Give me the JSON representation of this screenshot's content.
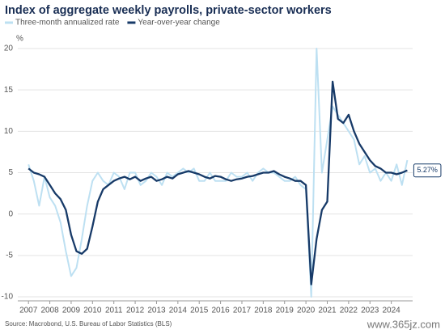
{
  "chart_data": {
    "type": "line",
    "title": "Index of aggregate weekly payrolls, private-sector workers",
    "y_label": "%",
    "source": "Source: Macrobond, U.S. Bureau of Labor Statistics (BLS)",
    "watermark": "www.365jz.com",
    "x": [
      2007,
      2007.25,
      2007.5,
      2007.75,
      2008,
      2008.25,
      2008.5,
      2008.75,
      2009,
      2009.25,
      2009.5,
      2009.75,
      2010,
      2010.25,
      2010.5,
      2010.75,
      2011,
      2011.25,
      2011.5,
      2011.75,
      2012,
      2012.25,
      2012.5,
      2012.75,
      2013,
      2013.25,
      2013.5,
      2013.75,
      2014,
      2014.25,
      2014.5,
      2014.75,
      2015,
      2015.25,
      2015.5,
      2015.75,
      2016,
      2016.25,
      2016.5,
      2016.75,
      2017,
      2017.25,
      2017.5,
      2017.75,
      2018,
      2018.25,
      2018.5,
      2018.75,
      2019,
      2019.25,
      2019.5,
      2019.75,
      2020,
      2020.25,
      2020.5,
      2020.75,
      2021,
      2021.25,
      2021.5,
      2021.75,
      2022,
      2022.25,
      2022.5,
      2022.75,
      2023,
      2023.25,
      2023.5,
      2023.75,
      2024,
      2024.25,
      2024.5,
      2024.75
    ],
    "series": [
      {
        "name": "Three-month annualized rate",
        "color": "#bde0f2",
        "values": [
          6.0,
          4.0,
          1.0,
          4.5,
          2.0,
          1.0,
          -1.0,
          -4.5,
          -7.5,
          -6.5,
          -3.0,
          1.0,
          4.0,
          5.0,
          4.0,
          3.5,
          5.0,
          4.5,
          3.0,
          5.0,
          5.0,
          3.5,
          4.0,
          5.0,
          4.5,
          3.5,
          5.0,
          4.5,
          5.0,
          5.5,
          5.0,
          5.5,
          4.0,
          4.0,
          5.0,
          4.0,
          4.0,
          4.0,
          5.0,
          4.5,
          4.5,
          5.0,
          4.0,
          5.0,
          5.5,
          5.0,
          5.0,
          4.5,
          4.0,
          4.0,
          4.5,
          3.5,
          3.0,
          -10.0,
          20.0,
          5.0,
          9.0,
          13.0,
          12.0,
          11.0,
          10.0,
          9.0,
          6.0,
          7.0,
          5.0,
          5.5,
          4.0,
          5.0,
          4.0,
          6.0,
          3.5,
          6.5
        ]
      },
      {
        "name": "Year-over-year change",
        "color": "#173a68",
        "values": [
          5.5,
          5.0,
          4.8,
          4.5,
          3.5,
          2.5,
          1.8,
          0.5,
          -2.5,
          -4.5,
          -4.8,
          -4.2,
          -1.5,
          1.5,
          3.0,
          3.5,
          4.0,
          4.3,
          4.5,
          4.2,
          4.5,
          4.0,
          4.3,
          4.5,
          4.0,
          4.2,
          4.5,
          4.3,
          4.8,
          5.0,
          5.2,
          5.0,
          4.8,
          4.5,
          4.3,
          4.6,
          4.5,
          4.2,
          4.0,
          4.2,
          4.3,
          4.5,
          4.6,
          4.8,
          5.0,
          5.0,
          5.2,
          4.8,
          4.5,
          4.3,
          4.0,
          4.0,
          3.5,
          -8.5,
          -3.0,
          0.5,
          1.5,
          16.0,
          11.5,
          11.0,
          12.0,
          10.0,
          8.5,
          7.5,
          6.5,
          5.8,
          5.5,
          5.0,
          5.0,
          4.8,
          5.0,
          5.27
        ],
        "value_labels": [
          null,
          null,
          null,
          null,
          null,
          null,
          null,
          null,
          null,
          null,
          null,
          null,
          null,
          null,
          null,
          null,
          null,
          null,
          null,
          null,
          null,
          null,
          null,
          null,
          null,
          null,
          null,
          null,
          null,
          null,
          null,
          null,
          null,
          null,
          null,
          null,
          null,
          null,
          null,
          null,
          null,
          null,
          null,
          null,
          null,
          null,
          null,
          null,
          null,
          null,
          null,
          null,
          null,
          null,
          null,
          null,
          null,
          null,
          null,
          null,
          null,
          null,
          null,
          null,
          null,
          null,
          null,
          null,
          null,
          null,
          null,
          "5.27%"
        ]
      }
    ],
    "xlim": [
      2006.5,
      2025.0
    ],
    "xticks": [
      2007,
      2008,
      2009,
      2010,
      2011,
      2012,
      2013,
      2014,
      2015,
      2016,
      2017,
      2018,
      2019,
      2020,
      2021,
      2022,
      2023,
      2024
    ],
    "ylim": [
      -10,
      20
    ],
    "yticks": [
      -10,
      -5,
      0,
      5,
      10,
      15,
      20
    ],
    "grid": true
  }
}
